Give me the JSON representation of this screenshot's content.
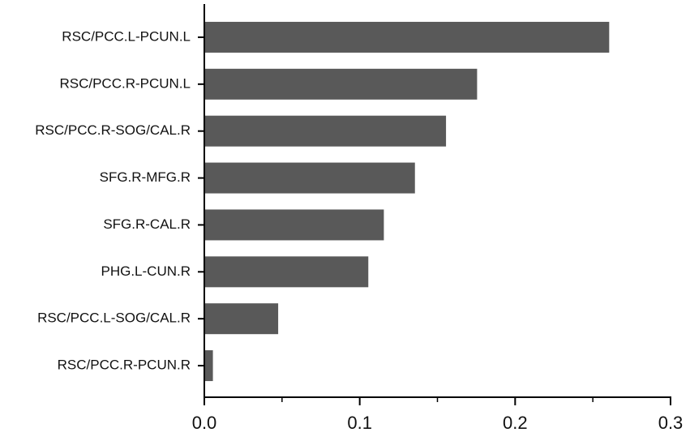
{
  "chart_data": {
    "type": "bar",
    "orientation": "horizontal",
    "categories": [
      "RSC/PCC.L-PCUN.L",
      "RSC/PCC.R-PCUN.L",
      "RSC/PCC.R-SOG/CAL.R",
      "SFG.R-MFG.R",
      "SFG.R-CAL.R",
      "PHG.L-CUN.R",
      "RSC/PCC.L-SOG/CAL.R",
      "RSC/PCC.R-PCUN.R"
    ],
    "values": [
      0.26,
      0.175,
      0.155,
      0.135,
      0.115,
      0.105,
      0.047,
      0.005
    ],
    "color": "#595959",
    "xlim": [
      0,
      0.3
    ],
    "xticks": [
      {
        "value": 0,
        "label": "0.0"
      },
      0.1,
      0.2,
      0.3
    ],
    "minor_xticks": [
      0.05,
      0.15,
      0.25
    ],
    "grid": false
  }
}
